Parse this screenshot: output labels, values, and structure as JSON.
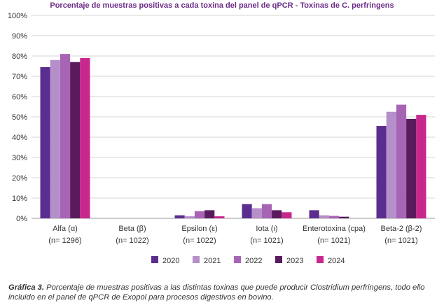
{
  "chart_data": {
    "type": "bar",
    "title": "Porcentaje de muestras positivas a cada toxina del panel de qPCR - Toxinas de C. perfringens",
    "ylim": [
      0,
      100
    ],
    "ytick_labels": [
      "0%",
      "10%",
      "20%",
      "30%",
      "40%",
      "50%",
      "60%",
      "70%",
      "80%",
      "90%",
      "100%"
    ],
    "categories": [
      "Alfa (α)",
      "Beta (β)",
      "Epsilon (ε)",
      "Iota (ι)",
      "Enterotoxina (cpa)",
      "Beta-2 (β-2)"
    ],
    "sample_sizes": [
      "(n= 1296)",
      "(n= 1022)",
      "(n= 1022)",
      "(n= 1021)",
      "(n= 1021)",
      "(n= 1021)"
    ],
    "grid": true,
    "legend_position": "bottom",
    "series": [
      {
        "name": "2020",
        "color": "#5b2d8f",
        "values": [
          74.5,
          0,
          1.5,
          7,
          4,
          45.5
        ]
      },
      {
        "name": "2021",
        "color": "#b58fc9",
        "values": [
          78,
          0,
          1,
          5,
          1.5,
          52.5
        ]
      },
      {
        "name": "2022",
        "color": "#a864b4",
        "values": [
          81,
          0,
          3.5,
          7,
          1.2,
          56
        ]
      },
      {
        "name": "2023",
        "color": "#5a1a5e",
        "values": [
          77,
          0,
          4,
          4,
          0.8,
          49
        ]
      },
      {
        "name": "2024",
        "color": "#c8288c",
        "values": [
          79,
          0,
          1,
          3,
          0,
          51
        ]
      }
    ]
  },
  "caption": {
    "label": "Gráfica 3.",
    "text": " Porcentaje de muestras positivas a las distintas toxinas que puede producir Clostridium perfringens, todo ello incluido en el panel de qPCR de Exopol para procesos digestivos en bovino."
  }
}
